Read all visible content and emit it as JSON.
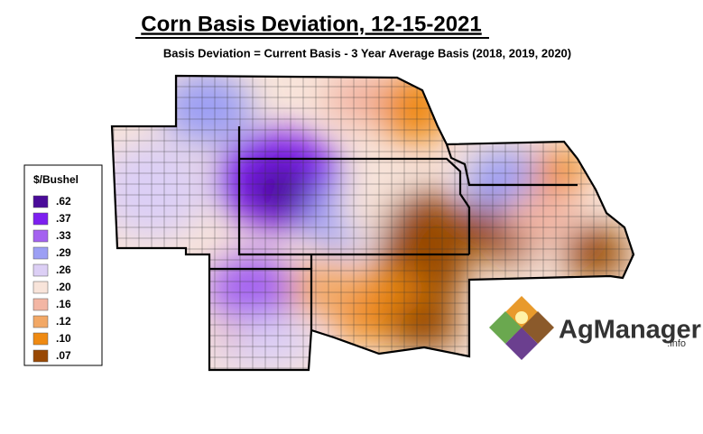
{
  "title": "Corn Basis Deviation, 12-15-2021",
  "subtitle": "Basis Deviation = Current Basis - 3 Year Average Basis (2018, 2019, 2020)",
  "legend": {
    "title": "$/Bushel",
    "items": [
      {
        "label": ".62",
        "color": "#4a0b99"
      },
      {
        "label": ".37",
        "color": "#7d1ff0"
      },
      {
        "label": ".33",
        "color": "#a462f0"
      },
      {
        "label": ".29",
        "color": "#9c9ff4"
      },
      {
        "label": ".26",
        "color": "#dccff5"
      },
      {
        "label": ".20",
        "color": "#f8e4da"
      },
      {
        "label": ".16",
        "color": "#f3b6a4"
      },
      {
        "label": ".12",
        "color": "#f2a866"
      },
      {
        "label": ".10",
        "color": "#ef8a12"
      },
      {
        "label": ".07",
        "color": "#984804"
      }
    ]
  },
  "logo": {
    "name": "AgManager",
    "suffix": ".info"
  }
}
